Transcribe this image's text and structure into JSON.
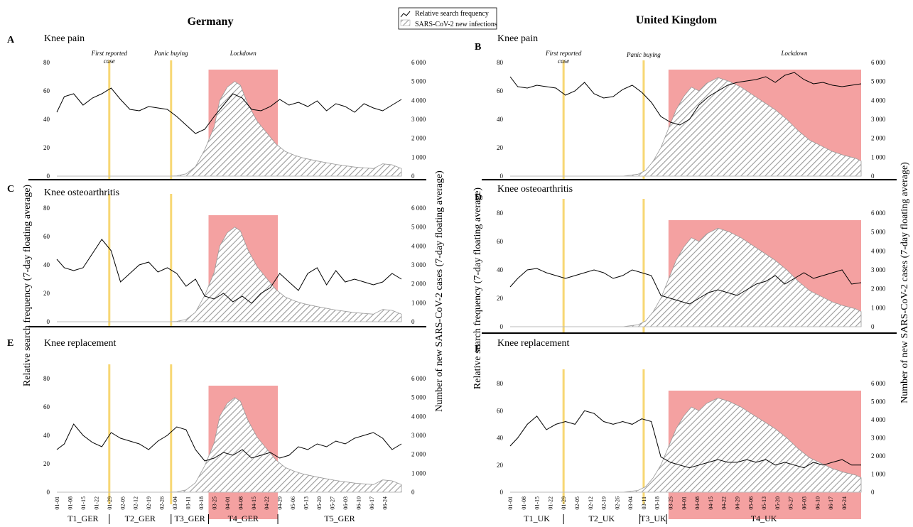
{
  "figure": {
    "left_title": "Germany",
    "right_title": "United Kingdom",
    "legend": {
      "line_label": "Relative search frequency",
      "area_label": "SARS-CoV-2 new infections"
    },
    "ylabel_left": "Relative search frequency (7-day floating average)",
    "ylabel_right": "Number of new SARS-CoV-2 cases  (7-day floating average)",
    "colors": {
      "lockdown": "#f4a1a1",
      "event_line": "#f7d774",
      "line": "#000000",
      "hatch": "#9a9a9a"
    }
  },
  "chart_data": [
    {
      "type": "area",
      "letter": "A",
      "title": "Knee pain",
      "country": "Germany",
      "ylim_left": [
        0,
        80
      ],
      "yticks_left": [
        "0",
        "20",
        "40",
        "60",
        "80"
      ],
      "ylim_right": [
        0,
        6000
      ],
      "yticks_right": [
        "0",
        "1 000",
        "2 000",
        "3 000",
        "4 000",
        "5 000",
        "6 000"
      ],
      "annotations": [
        "First reported case",
        "Panic buying",
        "Lockdown"
      ],
      "search_series": {
        "x_days": [
          1,
          5,
          10,
          15,
          20,
          25,
          30,
          35,
          40,
          45,
          50,
          55,
          60,
          65,
          70,
          75,
          80,
          85,
          90,
          95,
          100,
          105,
          110,
          115,
          120,
          125,
          130,
          135,
          140,
          145,
          150,
          155,
          160,
          165,
          170,
          175,
          180,
          185
        ],
        "values": [
          45,
          56,
          58,
          50,
          55,
          58,
          62,
          54,
          47,
          46,
          49,
          48,
          47,
          42,
          36,
          30,
          33,
          42,
          50,
          58,
          55,
          47,
          46,
          49,
          54,
          50,
          52,
          49,
          53,
          46,
          51,
          49,
          45,
          51,
          48,
          46,
          50,
          54
        ]
      },
      "cases_series": {
        "x_days": [
          1,
          50,
          60,
          65,
          70,
          75,
          80,
          85,
          88,
          92,
          96,
          99,
          103,
          108,
          113,
          118,
          123,
          128,
          133,
          140,
          150,
          160,
          170,
          175,
          180,
          185
        ],
        "values": [
          0,
          0,
          0,
          20,
          120,
          500,
          1400,
          2600,
          4000,
          4700,
          5000,
          4800,
          3800,
          2900,
          2300,
          1700,
          1300,
          1100,
          950,
          800,
          620,
          480,
          400,
          650,
          600,
          400
        ]
      }
    },
    {
      "type": "area",
      "letter": "B",
      "title": "Knee pain",
      "country": "United Kingdom",
      "ylim_left": [
        0,
        80
      ],
      "yticks_left": [
        "0",
        "20",
        "40",
        "60",
        "80"
      ],
      "ylim_right": [
        0,
        6000
      ],
      "yticks_right": [
        "0",
        "1 000",
        "2 000",
        "3 000",
        "4 000",
        "5 000",
        "6 000"
      ],
      "annotations": [
        "First reported case",
        "Panic buying",
        "Lockdown"
      ],
      "search_series": {
        "x_days": [
          1,
          5,
          10,
          15,
          20,
          25,
          30,
          35,
          40,
          45,
          50,
          55,
          60,
          65,
          70,
          75,
          80,
          85,
          90,
          95,
          100,
          105,
          110,
          115,
          120,
          125,
          130,
          135,
          140,
          145,
          150,
          155,
          160,
          165,
          170,
          175,
          180,
          185
        ],
        "values": [
          70,
          63,
          62,
          64,
          63,
          62,
          57,
          60,
          66,
          58,
          55,
          56,
          61,
          64,
          59,
          52,
          42,
          38,
          36,
          40,
          50,
          56,
          60,
          64,
          66,
          67,
          68,
          70,
          66,
          71,
          73,
          68,
          65,
          66,
          64,
          63,
          64,
          65
        ]
      },
      "cases_series": {
        "x_days": [
          1,
          60,
          68,
          72,
          76,
          80,
          84,
          88,
          92,
          96,
          100,
          104,
          110,
          116,
          122,
          128,
          134,
          140,
          146,
          152,
          158,
          164,
          170,
          176,
          182,
          185
        ],
        "values": [
          0,
          0,
          100,
          300,
          800,
          1500,
          2500,
          3500,
          4200,
          4700,
          4500,
          4900,
          5200,
          5000,
          4700,
          4300,
          3900,
          3500,
          3000,
          2400,
          1900,
          1600,
          1300,
          1100,
          950,
          800
        ]
      }
    },
    {
      "type": "area",
      "letter": "C",
      "title": "Knee osteoarthritis",
      "country": "Germany",
      "ylim_left": [
        0,
        80
      ],
      "yticks_left": [
        "0",
        "20",
        "40",
        "60",
        "80"
      ],
      "ylim_right": [
        0,
        6000
      ],
      "yticks_right": [
        "0",
        "1 000",
        "2 000",
        "3 000",
        "4 000",
        "5 000",
        "6 000"
      ],
      "search_series": {
        "x_days": [
          1,
          5,
          10,
          15,
          20,
          25,
          30,
          35,
          40,
          45,
          50,
          55,
          60,
          65,
          70,
          75,
          80,
          85,
          90,
          95,
          100,
          105,
          110,
          115,
          120,
          125,
          130,
          135,
          140,
          145,
          150,
          155,
          160,
          165,
          170,
          175,
          180,
          185
        ],
        "values": [
          44,
          38,
          36,
          38,
          48,
          58,
          50,
          28,
          34,
          40,
          42,
          35,
          38,
          34,
          25,
          30,
          18,
          16,
          20,
          14,
          18,
          13,
          20,
          24,
          34,
          28,
          22,
          34,
          38,
          26,
          36,
          28,
          30,
          28,
          26,
          28,
          34,
          30
        ]
      },
      "cases_series": {
        "x_days": [
          1,
          50,
          60,
          65,
          70,
          75,
          80,
          85,
          88,
          92,
          96,
          99,
          103,
          108,
          113,
          118,
          123,
          128,
          133,
          140,
          150,
          160,
          170,
          175,
          180,
          185
        ],
        "values": [
          0,
          0,
          0,
          20,
          120,
          500,
          1400,
          2600,
          4000,
          4700,
          5000,
          4800,
          3800,
          2900,
          2300,
          1700,
          1300,
          1100,
          950,
          800,
          620,
          480,
          400,
          650,
          600,
          400
        ]
      }
    },
    {
      "type": "area",
      "letter": "D",
      "title": "Knee osteoarthritis",
      "country": "United Kingdom",
      "ylim_left": [
        0,
        80
      ],
      "yticks_left": [
        "0",
        "20",
        "40",
        "60",
        "80"
      ],
      "ylim_right": [
        0,
        6000
      ],
      "yticks_right": [
        "0",
        "1 000",
        "2 000",
        "3 000",
        "4 000",
        "5 000",
        "6 000"
      ],
      "search_series": {
        "x_days": [
          1,
          5,
          10,
          15,
          20,
          25,
          30,
          35,
          40,
          45,
          50,
          55,
          60,
          65,
          70,
          75,
          80,
          85,
          90,
          95,
          100,
          105,
          110,
          115,
          120,
          125,
          130,
          135,
          140,
          145,
          150,
          155,
          160,
          165,
          170,
          175,
          180,
          185
        ],
        "values": [
          28,
          34,
          40,
          41,
          38,
          36,
          34,
          36,
          38,
          40,
          38,
          34,
          36,
          40,
          38,
          36,
          22,
          20,
          18,
          16,
          20,
          24,
          26,
          24,
          22,
          26,
          30,
          32,
          36,
          30,
          34,
          38,
          34,
          36,
          38,
          40,
          30,
          31
        ]
      },
      "cases_series": {
        "x_days": [
          1,
          60,
          68,
          72,
          76,
          80,
          84,
          88,
          92,
          96,
          100,
          104,
          110,
          116,
          122,
          128,
          134,
          140,
          146,
          152,
          158,
          164,
          170,
          176,
          182,
          185
        ],
        "values": [
          0,
          0,
          100,
          300,
          800,
          1500,
          2500,
          3500,
          4200,
          4700,
          4500,
          4900,
          5200,
          5000,
          4700,
          4300,
          3900,
          3500,
          3000,
          2400,
          1900,
          1600,
          1300,
          1100,
          950,
          800
        ]
      }
    },
    {
      "type": "area",
      "letter": "E",
      "title": "Knee replacement",
      "country": "Germany",
      "ylim_left": [
        0,
        80
      ],
      "yticks_left": [
        "0",
        "20",
        "40",
        "60",
        "80"
      ],
      "ylim_right": [
        0,
        6000
      ],
      "yticks_right": [
        "0",
        "1 000",
        "2 000",
        "3 000",
        "4 000",
        "5 000",
        "6 000"
      ],
      "xtick_labels": [
        "01-01",
        "01-08",
        "01-15",
        "01-22",
        "01-29",
        "02-05",
        "02-12",
        "02-19",
        "02-26",
        "03-04",
        "03-11",
        "03-18",
        "03-25",
        "04-01",
        "04-08",
        "04-15",
        "04-22",
        "04-29",
        "05-06",
        "05-13",
        "05-20",
        "05-27",
        "06-03",
        "06-10",
        "06-17",
        "06-24"
      ],
      "periods": [
        "T1_GER",
        "T2_GER",
        "T3_GER",
        "T4_GER",
        "T5_GER"
      ],
      "search_series": {
        "x_days": [
          1,
          5,
          10,
          15,
          20,
          25,
          30,
          35,
          40,
          45,
          50,
          55,
          60,
          65,
          70,
          75,
          80,
          85,
          90,
          95,
          100,
          105,
          110,
          115,
          120,
          125,
          130,
          135,
          140,
          145,
          150,
          155,
          160,
          165,
          170,
          175,
          180,
          185
        ],
        "values": [
          30,
          34,
          48,
          40,
          35,
          32,
          42,
          38,
          36,
          34,
          30,
          36,
          40,
          46,
          44,
          30,
          22,
          24,
          28,
          26,
          30,
          24,
          26,
          28,
          24,
          26,
          32,
          30,
          34,
          32,
          36,
          34,
          38,
          40,
          42,
          38,
          30,
          34
        ]
      },
      "cases_series": {
        "x_days": [
          1,
          50,
          60,
          65,
          70,
          75,
          80,
          85,
          88,
          92,
          96,
          99,
          103,
          108,
          113,
          118,
          123,
          128,
          133,
          140,
          150,
          160,
          170,
          175,
          180,
          185
        ],
        "values": [
          0,
          0,
          0,
          20,
          120,
          500,
          1400,
          2600,
          4000,
          4700,
          5000,
          4800,
          3800,
          2900,
          2300,
          1700,
          1300,
          1100,
          950,
          800,
          620,
          480,
          400,
          650,
          600,
          400
        ]
      }
    },
    {
      "type": "area",
      "letter": "F",
      "title": "Knee replacement",
      "country": "United Kingdom",
      "ylim_left": [
        0,
        80
      ],
      "yticks_left": [
        "0",
        "20",
        "40",
        "60",
        "80"
      ],
      "ylim_right": [
        0,
        6000
      ],
      "yticks_right": [
        "0",
        "1 000",
        "2 000",
        "3 000",
        "4 000",
        "5 000",
        "6 000"
      ],
      "xtick_labels": [
        "01-01",
        "01-08",
        "01-15",
        "01-22",
        "01-29",
        "02-05",
        "02-12",
        "02-19",
        "02-26",
        "03-04",
        "03-11",
        "03-18",
        "03-25",
        "04-01",
        "04-08",
        "04-15",
        "04-22",
        "04-29",
        "05-06",
        "05-13",
        "05-20",
        "05-27",
        "06-03",
        "06-10",
        "06-17",
        "06-24"
      ],
      "periods": [
        "T1_UK",
        "T2_UK",
        "T3_UK",
        "T4_UK"
      ],
      "search_series": {
        "x_days": [
          1,
          5,
          10,
          15,
          20,
          25,
          30,
          35,
          40,
          45,
          50,
          55,
          60,
          65,
          70,
          75,
          80,
          85,
          90,
          95,
          100,
          105,
          110,
          115,
          120,
          125,
          130,
          135,
          140,
          145,
          150,
          155,
          160,
          165,
          170,
          175,
          180,
          185
        ],
        "values": [
          34,
          40,
          50,
          56,
          46,
          50,
          52,
          50,
          60,
          58,
          52,
          50,
          52,
          50,
          54,
          52,
          26,
          22,
          20,
          18,
          20,
          22,
          24,
          22,
          22,
          24,
          22,
          24,
          20,
          22,
          20,
          18,
          22,
          20,
          22,
          24,
          20,
          20
        ]
      },
      "cases_series": {
        "x_days": [
          1,
          60,
          68,
          72,
          76,
          80,
          84,
          88,
          92,
          96,
          100,
          104,
          110,
          116,
          122,
          128,
          134,
          140,
          146,
          152,
          158,
          164,
          170,
          176,
          182,
          185
        ],
        "values": [
          0,
          0,
          100,
          300,
          800,
          1500,
          2500,
          3500,
          4200,
          4700,
          4500,
          4900,
          5200,
          5000,
          4700,
          4300,
          3900,
          3500,
          3000,
          2400,
          1900,
          1600,
          1300,
          1100,
          950,
          800
        ]
      }
    }
  ]
}
